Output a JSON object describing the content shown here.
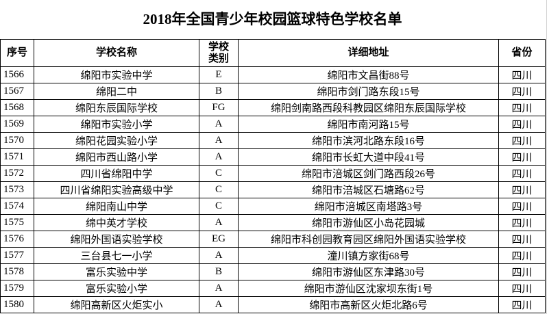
{
  "title": "2018年全国青少年校园篮球特色学校名单",
  "headers": {
    "index": "序号",
    "name": "学校名称",
    "category_line1": "学校",
    "category_line2": "类别",
    "address": "详细地址",
    "province": "省份"
  },
  "rows": [
    {
      "index": "1566",
      "name": "绵阳市实验中学",
      "category": "E",
      "address": "绵阳市文昌街88号",
      "province": "四川"
    },
    {
      "index": "1567",
      "name": "绵阳二中",
      "category": "B",
      "address": "绵阳市剑门路东段15号",
      "province": "四川"
    },
    {
      "index": "1568",
      "name": "绵阳东辰国际学校",
      "category": "FG",
      "address": "绵阳剑南路西段科教园区绵阳东辰国际学校",
      "province": "四川"
    },
    {
      "index": "1569",
      "name": "绵阳市实验小学",
      "category": "A",
      "address": "绵阳市南河路15号",
      "province": "四川"
    },
    {
      "index": "1570",
      "name": "绵阳花园实验小学",
      "category": "A",
      "address": "绵阳市滨河北路东段16号",
      "province": "四川"
    },
    {
      "index": "1571",
      "name": "绵阳市西山路小学",
      "category": "A",
      "address": "绵阳市长虹大道中段41号",
      "province": "四川"
    },
    {
      "index": "1572",
      "name": "四川省绵阳中学",
      "category": "C",
      "address": "绵阳市涪城区剑门路西段26号",
      "province": "四川"
    },
    {
      "index": "1573",
      "name": "四川省绵阳实验高级中学",
      "category": "C",
      "address": "绵阳市涪城区石塘路62号",
      "province": "四川"
    },
    {
      "index": "1574",
      "name": "绵阳南山中学",
      "category": "C",
      "address": "绵阳市涪城区南塔路3号",
      "province": "四川"
    },
    {
      "index": "1575",
      "name": "绵中英才学校",
      "category": "A",
      "address": "绵阳市游仙区小岛花园城",
      "province": "四川"
    },
    {
      "index": "1576",
      "name": "绵阳外国语实验学校",
      "category": "EG",
      "address": "绵阳市科创园教育园区绵阳外国语实验学校",
      "province": "四川"
    },
    {
      "index": "1577",
      "name": "三台县七一小学",
      "category": "A",
      "address": "潼川镇方家街68号",
      "province": "四川"
    },
    {
      "index": "1578",
      "name": "富乐实验中学",
      "category": "B",
      "address": "绵阳市游仙区东津路30号",
      "province": "四川"
    },
    {
      "index": "1579",
      "name": "富乐实验小学",
      "category": "A",
      "address": "绵阳市游仙区沈家坝东街1号",
      "province": "四川"
    },
    {
      "index": "1580",
      "name": "绵阳高新区火炬实小",
      "category": "A",
      "address": "绵阳市高新区火炬北路6号",
      "province": "四川"
    }
  ]
}
